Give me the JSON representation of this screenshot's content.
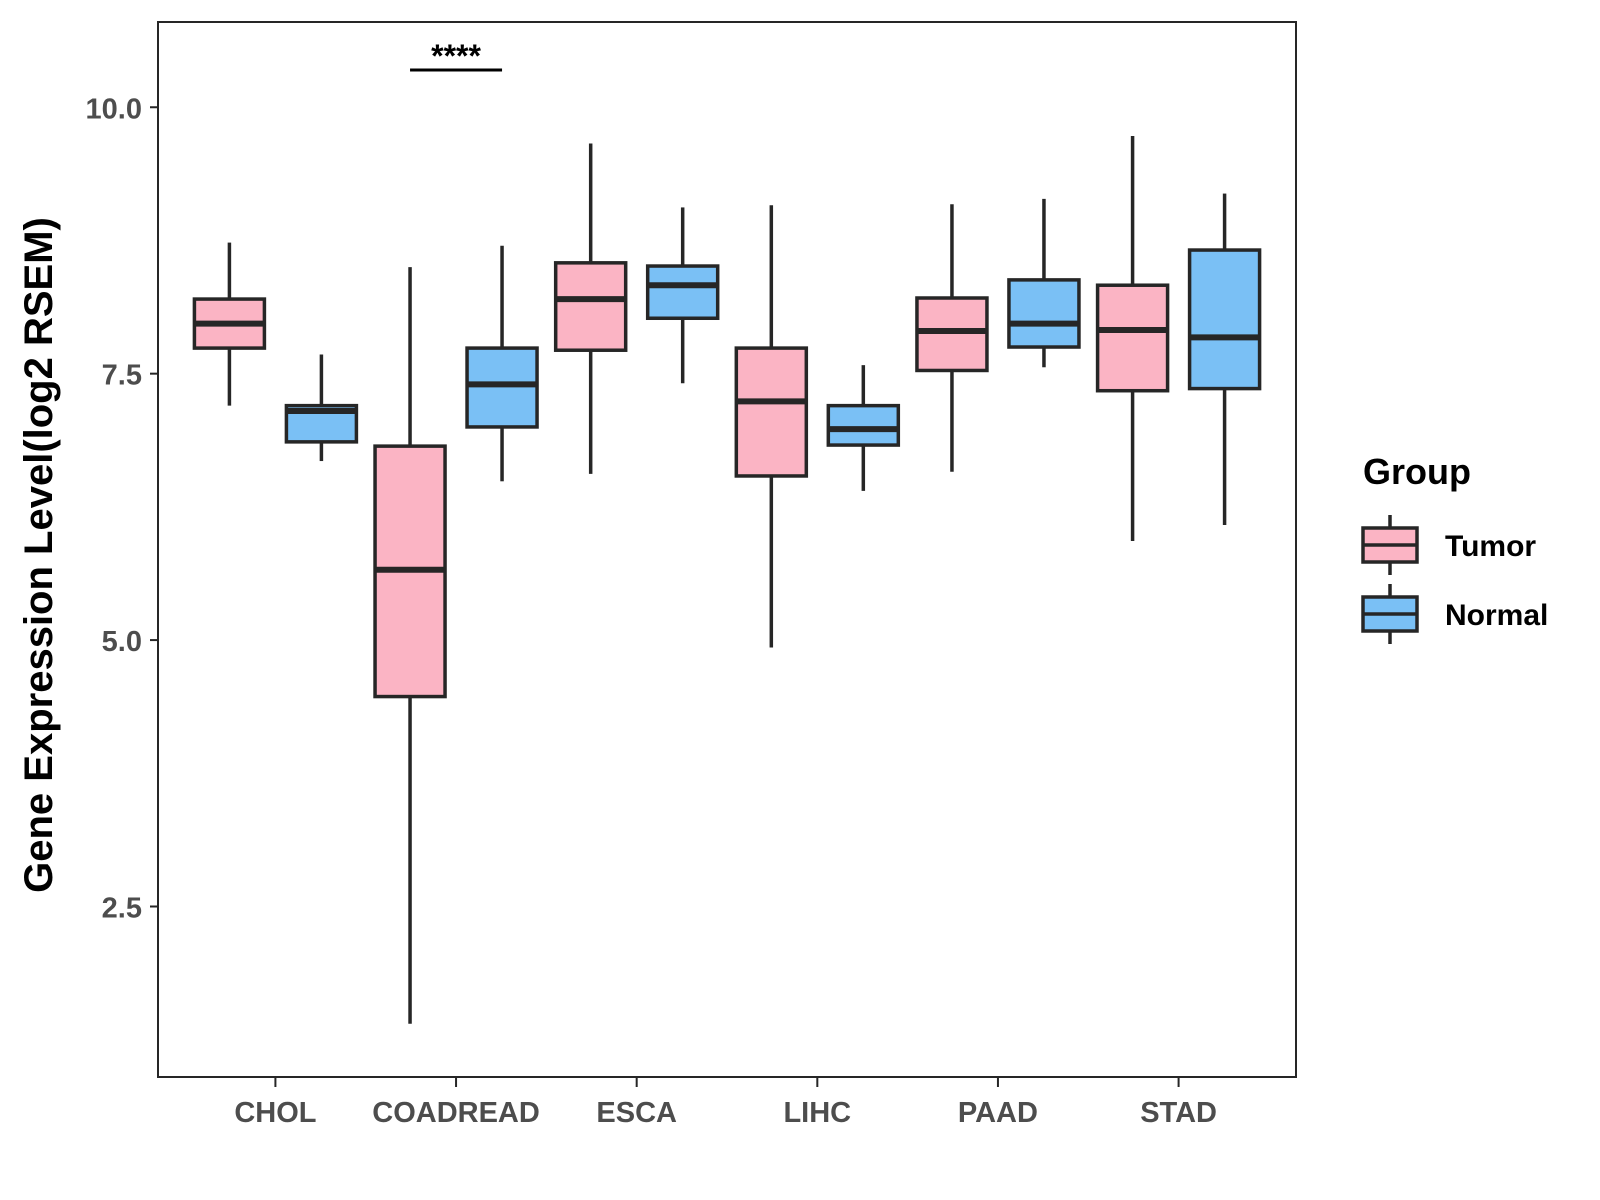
{
  "chart_data": {
    "type": "box",
    "title": "",
    "xlabel": "",
    "ylabel": "Gene Expression Level(log2 RSEM)",
    "ylim": [
      0.9,
      10.8
    ],
    "yticks": [
      2.5,
      5.0,
      7.5,
      10.0
    ],
    "ytick_labels": [
      "2.5",
      "5.0",
      "7.5",
      "10.0"
    ],
    "categories": [
      "CHOL",
      "COADREAD",
      "ESCA",
      "LIHC",
      "PAAD",
      "STAD"
    ],
    "grid": false,
    "legend": {
      "title": "Group",
      "position": "right",
      "entries": [
        "Tumor",
        "Normal"
      ]
    },
    "colors": {
      "Tumor": "#FBB4C4",
      "Normal": "#7AC0F5",
      "outline": "#262626"
    },
    "series": [
      {
        "name": "Tumor",
        "boxes": [
          {
            "category": "CHOL",
            "min": 7.2,
            "q1": 7.74,
            "median": 7.97,
            "q3": 8.2,
            "max": 8.73
          },
          {
            "category": "COADREAD",
            "min": 1.4,
            "q1": 4.47,
            "median": 5.66,
            "q3": 6.82,
            "max": 8.5
          },
          {
            "category": "ESCA",
            "min": 6.56,
            "q1": 7.72,
            "median": 8.2,
            "q3": 8.54,
            "max": 9.66
          },
          {
            "category": "LIHC",
            "min": 4.93,
            "q1": 6.54,
            "median": 7.24,
            "q3": 7.74,
            "max": 9.08
          },
          {
            "category": "PAAD",
            "min": 6.58,
            "q1": 7.53,
            "median": 7.9,
            "q3": 8.21,
            "max": 9.09
          },
          {
            "category": "STAD",
            "min": 5.93,
            "q1": 7.34,
            "median": 7.91,
            "q3": 8.33,
            "max": 9.73
          }
        ]
      },
      {
        "name": "Normal",
        "boxes": [
          {
            "category": "CHOL",
            "min": 6.68,
            "q1": 6.86,
            "median": 7.15,
            "q3": 7.2,
            "max": 7.68
          },
          {
            "category": "COADREAD",
            "min": 6.49,
            "q1": 7.0,
            "median": 7.4,
            "q3": 7.74,
            "max": 8.7
          },
          {
            "category": "ESCA",
            "min": 7.41,
            "q1": 8.02,
            "median": 8.33,
            "q3": 8.51,
            "max": 9.06
          },
          {
            "category": "LIHC",
            "min": 6.4,
            "q1": 6.83,
            "median": 6.98,
            "q3": 7.2,
            "max": 7.58
          },
          {
            "category": "PAAD",
            "min": 7.56,
            "q1": 7.75,
            "median": 7.97,
            "q3": 8.38,
            "max": 9.14
          },
          {
            "category": "STAD",
            "min": 6.08,
            "q1": 7.36,
            "median": 7.84,
            "q3": 8.66,
            "max": 9.19
          }
        ]
      }
    ],
    "annotations": [
      {
        "category": "COADREAD",
        "text": "****",
        "y": 10.35
      }
    ]
  }
}
